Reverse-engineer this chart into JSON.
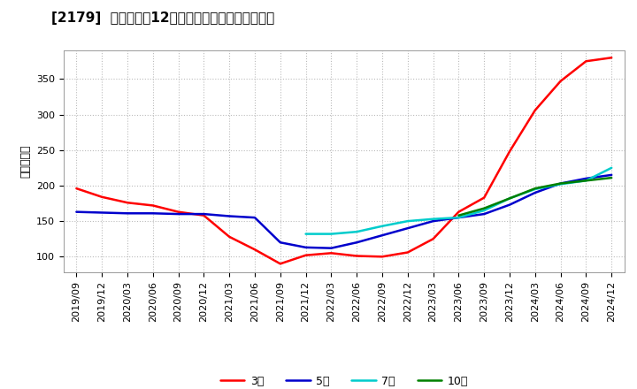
{
  "title": "[2179]  当期純利益12か月移動合計の平均値の推移",
  "ylabel": "（百万円）",
  "x_labels": [
    "2019/09",
    "2019/12",
    "2020/03",
    "2020/06",
    "2020/09",
    "2020/12",
    "2021/03",
    "2021/06",
    "2021/09",
    "2021/12",
    "2022/03",
    "2022/06",
    "2022/09",
    "2022/12",
    "2023/03",
    "2023/06",
    "2023/09",
    "2023/12",
    "2024/03",
    "2024/06",
    "2024/09",
    "2024/12"
  ],
  "ylim": [
    78,
    390
  ],
  "yticks": [
    100,
    150,
    200,
    250,
    300,
    350
  ],
  "series": {
    "3年": {
      "color": "#ff0000",
      "data": [
        [
          0,
          196
        ],
        [
          1,
          184
        ],
        [
          2,
          176
        ],
        [
          3,
          172
        ],
        [
          4,
          163
        ],
        [
          5,
          158
        ],
        [
          6,
          128
        ],
        [
          7,
          110
        ],
        [
          8,
          90
        ],
        [
          9,
          102
        ],
        [
          10,
          105
        ],
        [
          11,
          101
        ],
        [
          12,
          100
        ],
        [
          13,
          106
        ],
        [
          14,
          125
        ],
        [
          15,
          163
        ],
        [
          16,
          183
        ],
        [
          17,
          248
        ],
        [
          18,
          306
        ],
        [
          19,
          347
        ],
        [
          20,
          375
        ],
        [
          21,
          380
        ]
      ]
    },
    "5年": {
      "color": "#0000cc",
      "data": [
        [
          0,
          163
        ],
        [
          1,
          162
        ],
        [
          2,
          161
        ],
        [
          3,
          161
        ],
        [
          4,
          160
        ],
        [
          5,
          160
        ],
        [
          6,
          157
        ],
        [
          7,
          155
        ],
        [
          8,
          120
        ],
        [
          9,
          113
        ],
        [
          10,
          112
        ],
        [
          11,
          120
        ],
        [
          12,
          130
        ],
        [
          13,
          140
        ],
        [
          14,
          150
        ],
        [
          15,
          155
        ],
        [
          16,
          160
        ],
        [
          17,
          173
        ],
        [
          18,
          190
        ],
        [
          19,
          203
        ],
        [
          20,
          210
        ],
        [
          21,
          215
        ]
      ]
    },
    "7年": {
      "color": "#00cccc",
      "data": [
        [
          9,
          132
        ],
        [
          10,
          132
        ],
        [
          11,
          135
        ],
        [
          12,
          143
        ],
        [
          13,
          150
        ],
        [
          14,
          153
        ],
        [
          15,
          155
        ],
        [
          16,
          165
        ],
        [
          17,
          182
        ],
        [
          18,
          195
        ],
        [
          19,
          202
        ],
        [
          20,
          207
        ],
        [
          21,
          225
        ]
      ]
    },
    "10年": {
      "color": "#008000",
      "data": [
        [
          15,
          158
        ],
        [
          16,
          168
        ],
        [
          17,
          182
        ],
        [
          18,
          196
        ],
        [
          19,
          203
        ],
        [
          20,
          207
        ],
        [
          21,
          211
        ]
      ]
    }
  },
  "legend_order": [
    "3年",
    "5年",
    "7年",
    "10年"
  ],
  "legend_labels": [
    "3年",
    "5年",
    "7年",
    "10年"
  ],
  "background_color": "#ffffff",
  "plot_bg_color": "#ffffff",
  "grid_color": "#bbbbbb",
  "title_fontsize": 11,
  "tick_fontsize": 8
}
